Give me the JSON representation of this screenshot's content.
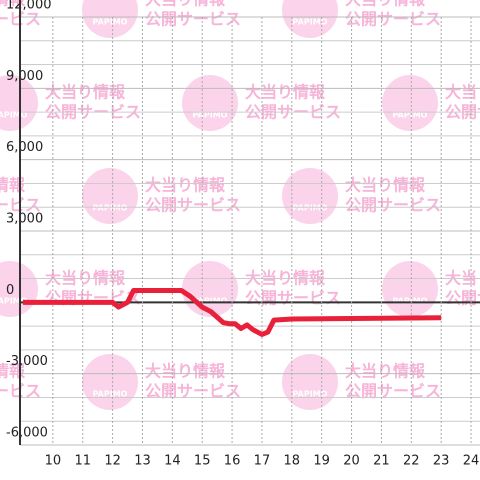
{
  "chart_data": {
    "type": "line",
    "x": [
      9,
      12,
      12.2,
      12.5,
      12.7,
      14.3,
      14.6,
      15,
      15.3,
      15.7,
      15.9,
      16.1,
      16.3,
      16.5,
      16.7,
      17,
      17.2,
      17.4,
      18,
      23
    ],
    "series": [
      {
        "color": "#e8203a",
        "values": [
          0,
          0,
          -200,
          0,
          500,
          500,
          250,
          -200,
          -400,
          -850,
          -900,
          -900,
          -1100,
          -950,
          -1150,
          -1350,
          -1250,
          -750,
          -700,
          -650
        ]
      }
    ],
    "xlim": [
      8.9,
      24.3
    ],
    "xticks": [
      10,
      11,
      12,
      13,
      14,
      15,
      16,
      17,
      18,
      19,
      20,
      21,
      22,
      23,
      24
    ],
    "ylim": [
      -6000,
      12000
    ],
    "yticks": [
      {
        "value": -6000,
        "label": "-6,000"
      },
      {
        "value": -3000,
        "label": "-3,000"
      },
      0,
      {
        "value": 3000,
        "label": "3,000"
      },
      {
        "value": 6000,
        "label": "6,000"
      },
      {
        "value": 9000,
        "label": "9,000"
      },
      {
        "value": 12000,
        "label": "12,000"
      }
    ],
    "yminorticks": [
      -5000,
      -4000,
      -2000,
      -1000,
      1000,
      2000,
      4000,
      5000,
      7000,
      8000,
      10000,
      11000
    ],
    "grid": true
  },
  "watermark": {
    "title": "大当り情報",
    "subtitle": "公開サービス",
    "logo": "PAPIMO"
  }
}
